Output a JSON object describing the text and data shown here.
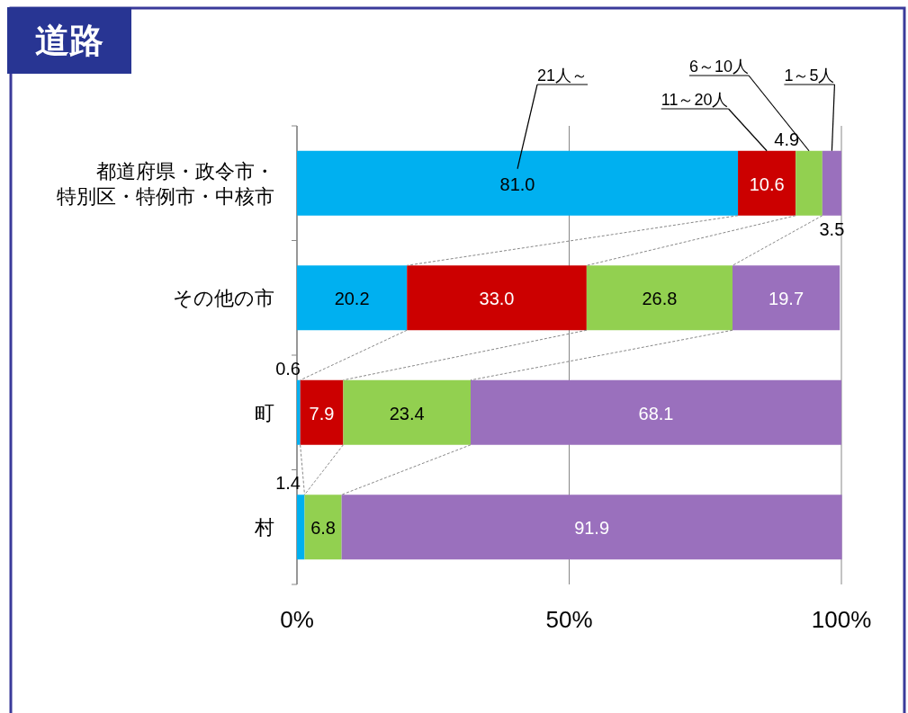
{
  "chart_data": {
    "type": "bar",
    "orientation": "horizontal",
    "stacked": true,
    "title": "道路",
    "categories": [
      "都道府県・政令市・特別区・特例市・中核市",
      "その他の市",
      "町",
      "村"
    ],
    "series": [
      {
        "name": "21人～",
        "color": "#00b0f0",
        "values": [
          81.0,
          20.2,
          0.6,
          1.4
        ],
        "value_labels": [
          "81.0",
          "20.2",
          "0.6",
          "1.4"
        ]
      },
      {
        "name": "11～20人",
        "color": "#cc0000",
        "values": [
          10.6,
          33.0,
          7.9,
          null
        ],
        "value_labels": [
          "10.6",
          "33.0",
          "7.9",
          null
        ]
      },
      {
        "name": "6～10人",
        "color": "#92d050",
        "values": [
          4.9,
          26.8,
          23.4,
          6.8
        ],
        "value_labels": [
          "4.9",
          "26.8",
          "23.4",
          "6.8"
        ]
      },
      {
        "name": "1～5人",
        "color": "#9a70bd",
        "values": [
          3.5,
          19.7,
          68.1,
          91.9
        ],
        "value_labels": [
          "3.5",
          "19.7",
          "68.1",
          "91.9"
        ]
      }
    ],
    "xlim": [
      0,
      100
    ],
    "xticks": [
      {
        "value": 0,
        "label": "0%"
      },
      {
        "value": 50,
        "label": "50%"
      },
      {
        "value": 100,
        "label": "100%"
      }
    ],
    "grid": "x"
  }
}
